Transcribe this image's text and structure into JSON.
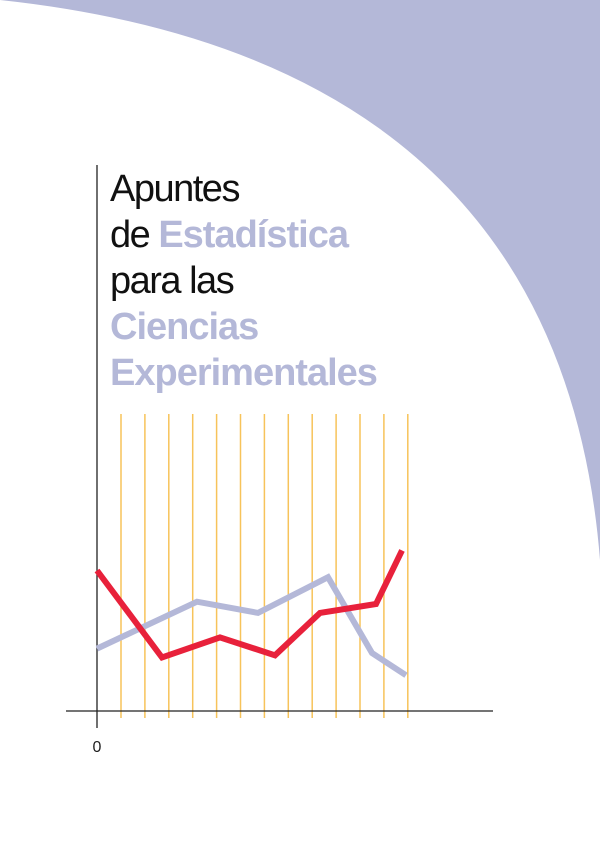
{
  "colors": {
    "background": "#ffffff",
    "arc": "#b4b8d8",
    "text_dark": "#111111",
    "text_accent": "#b4b8d8",
    "grid": "#f7c35a",
    "axis": "#222222",
    "series_red": "#e8213b",
    "series_lavender": "#b4b8d8"
  },
  "title": {
    "line1": "Apuntes",
    "line2_prefix": "de ",
    "line2_accent": "Estadística",
    "line3": "para las",
    "line4": "Ciencias",
    "line5": "Experimentales"
  },
  "chart_data": {
    "type": "line",
    "x_tick_labels": [
      "0"
    ],
    "grid": "vertical lines",
    "series": [
      {
        "color": "#e8213b",
        "values": [
          6.3,
          2.4,
          3.3,
          2.5,
          4.4,
          4.8,
          7.2
        ]
      },
      {
        "color": "#b4b8d8",
        "values": [
          2.8,
          4.9,
          4.4,
          6.0,
          2.6,
          1.6
        ]
      }
    ]
  }
}
